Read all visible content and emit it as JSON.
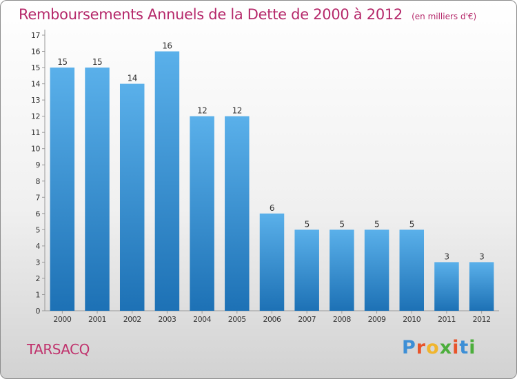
{
  "header": {
    "title": "Remboursements Annuels de la Dette de 2000 à 2012",
    "subtitle": "(en milliers d'€)"
  },
  "footer": {
    "commune": "TARSACQ",
    "brand": [
      "P",
      "r",
      "o",
      "x",
      "i",
      "t",
      "i"
    ]
  },
  "colors": {
    "title": "#b5286a",
    "bar_light": "#5ab0ea",
    "bar_dark": "#1d71b5",
    "brand": [
      "#3d8fd6",
      "#e8542a",
      "#f0b52e",
      "#4cae3c",
      "#e8542a",
      "#3d8fd6",
      "#4cae3c"
    ]
  },
  "chart_data": {
    "type": "bar",
    "categories": [
      "2000",
      "2001",
      "2002",
      "2003",
      "2004",
      "2005",
      "2006",
      "2007",
      "2008",
      "2009",
      "2010",
      "2011",
      "2012"
    ],
    "values": [
      15,
      15,
      14,
      16,
      12,
      12,
      6,
      5,
      5,
      5,
      5,
      3,
      3
    ],
    "title": "Remboursements Annuels de la Dette de 2000 à 2012",
    "subtitle": "(en milliers d'€)",
    "ylim": [
      0,
      17
    ],
    "yticks": [
      "0",
      "1",
      "2",
      "3",
      "4",
      "5",
      "6",
      "7",
      "8",
      "9",
      "10",
      "11",
      "12",
      "13",
      "14",
      "15",
      "16",
      "17"
    ],
    "grid": false,
    "legend": "none"
  }
}
